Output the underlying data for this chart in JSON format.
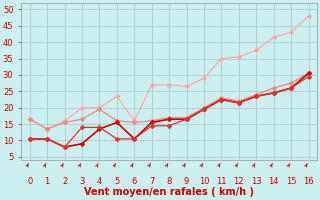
{
  "background_color": "#cceeee",
  "grid_color": "#aacccc",
  "xlabel": "Vent moyen/en rafales ( km/h )",
  "xlabel_color": "#cc0000",
  "xlabel_fontsize": 7,
  "ylabel_ticks": [
    5,
    10,
    15,
    20,
    25,
    30,
    35,
    40,
    45,
    50
  ],
  "xlim": [
    -0.5,
    16.5
  ],
  "ylim": [
    4,
    52
  ],
  "x": [
    0,
    1,
    2,
    3,
    4,
    5,
    6,
    7,
    8,
    9,
    10,
    11,
    12,
    13,
    14,
    15,
    16
  ],
  "series": [
    {
      "y": [
        16.5,
        13.5,
        16.0,
        20.0,
        20.0,
        23.5,
        16.0,
        27.0,
        27.0,
        26.5,
        29.0,
        35.0,
        35.5,
        37.5,
        41.5,
        43.0,
        48.0
      ],
      "color": "#ffaaaa",
      "linewidth": 0.9,
      "marker": "D",
      "markersize": 2.5
    },
    {
      "y": [
        16.5,
        13.5,
        15.5,
        16.5,
        19.5,
        16.0,
        15.5,
        16.0,
        17.0,
        17.0,
        20.0,
        23.0,
        22.0,
        24.0,
        26.0,
        27.5,
        30.5
      ],
      "color": "#ee8888",
      "linewidth": 0.9,
      "marker": "D",
      "markersize": 2.5
    },
    {
      "y": [
        10.5,
        10.5,
        8.0,
        9.0,
        13.5,
        15.5,
        10.5,
        15.5,
        16.5,
        16.5,
        19.5,
        22.5,
        21.5,
        23.5,
        24.5,
        26.0,
        30.5
      ],
      "color": "#cc0000",
      "linewidth": 1.2,
      "marker": "D",
      "markersize": 2.5
    },
    {
      "y": [
        10.5,
        10.5,
        8.0,
        14.0,
        14.0,
        10.5,
        10.5,
        14.5,
        14.5,
        16.5,
        19.5,
        22.5,
        21.5,
        23.5,
        24.5,
        26.0,
        29.5
      ],
      "color": "#dd3333",
      "linewidth": 0.9,
      "marker": "D",
      "markersize": 2.5
    }
  ],
  "tick_color": "#cc0000",
  "tick_fontsize": 6,
  "ytick_fontsize": 6
}
